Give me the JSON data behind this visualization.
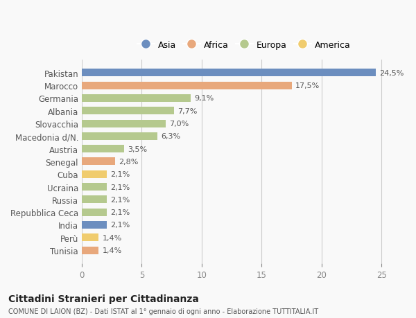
{
  "categories": [
    "Pakistan",
    "Marocco",
    "Germania",
    "Albania",
    "Slovacchia",
    "Macedonia d/N.",
    "Austria",
    "Senegal",
    "Cuba",
    "Ucraina",
    "Russia",
    "Repubblica Ceca",
    "India",
    "Perù",
    "Tunisia"
  ],
  "values": [
    24.5,
    17.5,
    9.1,
    7.7,
    7.0,
    6.3,
    3.5,
    2.8,
    2.1,
    2.1,
    2.1,
    2.1,
    2.1,
    1.4,
    1.4
  ],
  "labels": [
    "24,5%",
    "17,5%",
    "9,1%",
    "7,7%",
    "7,0%",
    "6,3%",
    "3,5%",
    "2,8%",
    "2,1%",
    "2,1%",
    "2,1%",
    "2,1%",
    "2,1%",
    "1,4%",
    "1,4%"
  ],
  "continents": [
    "Asia",
    "Africa",
    "Europa",
    "Europa",
    "Europa",
    "Europa",
    "Europa",
    "Africa",
    "America",
    "Europa",
    "Europa",
    "Europa",
    "Asia",
    "America",
    "Africa"
  ],
  "continent_colors": {
    "Asia": "#6c8ebf",
    "Africa": "#e8a87c",
    "Europa": "#b5c98e",
    "America": "#f0cc6e"
  },
  "legend_order": [
    "Asia",
    "Africa",
    "Europa",
    "America"
  ],
  "title": "Cittadini Stranieri per Cittadinanza",
  "subtitle": "COMUNE DI LAION (BZ) - Dati ISTAT al 1° gennaio di ogni anno - Elaborazione TUTTITALIA.IT",
  "xlim": [
    0,
    27
  ],
  "xticks": [
    0,
    5,
    10,
    15,
    20,
    25
  ],
  "background_color": "#f9f9f9",
  "grid_color": "#cccccc"
}
